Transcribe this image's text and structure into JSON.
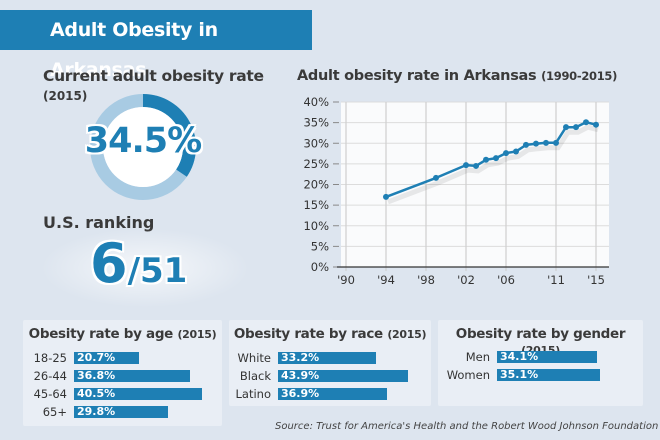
{
  "header": {
    "title": "Adult Obesity in Arkansas"
  },
  "current_rate": {
    "label": "Current adult obesity rate",
    "year": "(2015)",
    "value_text": "34.5%",
    "value": 34.5
  },
  "ranking": {
    "label": "U.S. ranking",
    "rank": "6",
    "total": "/51"
  },
  "colors": {
    "accent": "#1e7fb4",
    "ring_light": "#a8cbe3",
    "background": "#dde5ef",
    "panel": "#e9eef5"
  },
  "chart_data": [
    {
      "type": "line",
      "title": "Adult obesity rate in Arkansas",
      "subtitle": "(1990-2015)",
      "xlabel": "",
      "ylabel": "",
      "x_ticks": [
        1990,
        1994,
        1998,
        2002,
        2006,
        2011,
        2015
      ],
      "x_tick_labels": [
        "'90",
        "'94",
        "'98",
        "'02",
        "'06",
        "'11",
        "'15"
      ],
      "y_ticks": [
        0,
        5,
        10,
        15,
        20,
        25,
        30,
        35,
        40
      ],
      "y_tick_labels": [
        "0%",
        "5%",
        "10%",
        "15%",
        "20%",
        "25%",
        "30%",
        "35%",
        "40%"
      ],
      "xlim": [
        1990,
        2015.5
      ],
      "ylim": [
        0,
        40
      ],
      "grid": true,
      "series": [
        {
          "name": "Adult obesity rate",
          "x": [
            1994,
            1999,
            2002,
            2003,
            2004,
            2005,
            2006,
            2007,
            2008,
            2009,
            2010,
            2011,
            2012,
            2013,
            2014,
            2015
          ],
          "values": [
            17.0,
            21.6,
            24.7,
            24.5,
            26.0,
            26.4,
            27.6,
            28.0,
            29.6,
            29.9,
            30.1,
            30.1,
            33.9,
            33.9,
            35.1,
            34.5
          ]
        }
      ]
    },
    {
      "type": "bar",
      "title": "Obesity rate by age",
      "subtitle": "(2015)",
      "categories": [
        "18-25",
        "26-44",
        "45-64",
        "65+"
      ],
      "values": [
        20.7,
        36.8,
        40.5,
        29.8
      ],
      "labels": [
        "20.7%",
        "36.8%",
        "40.5%",
        "29.8%"
      ]
    },
    {
      "type": "bar",
      "title": "Obesity rate by race",
      "subtitle": "(2015)",
      "categories": [
        "White",
        "Black",
        "Latino"
      ],
      "values": [
        33.2,
        43.9,
        36.9
      ],
      "labels": [
        "33.2%",
        "43.9%",
        "36.9%"
      ]
    },
    {
      "type": "bar",
      "title": "Obesity rate by gender",
      "subtitle": "(2015)",
      "categories": [
        "Men",
        "Women"
      ],
      "values": [
        34.1,
        35.1
      ],
      "labels": [
        "34.1%",
        "35.1%"
      ]
    }
  ],
  "source": "Source: Trust for America's Health and the Robert Wood Johnson Foundation"
}
